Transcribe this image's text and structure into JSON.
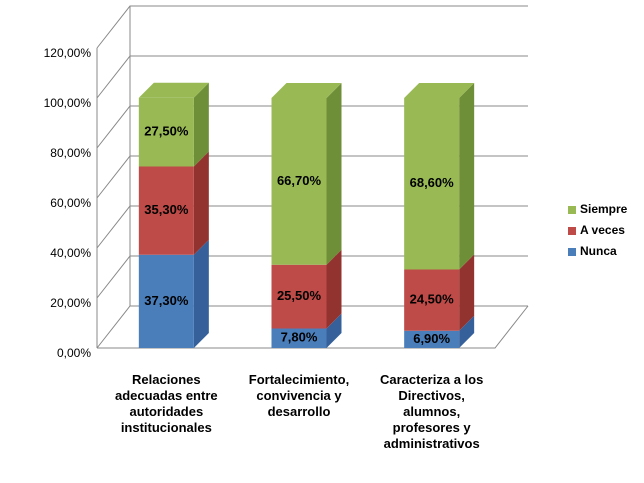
{
  "chart_data": {
    "type": "bar",
    "stacked": true,
    "categories": [
      "Relaciones adecuadas entre autoridades institucionales",
      "Fortalecimiento, convivencia y desarrollo",
      "Caracteriza a los Directivos, alumnos, profesores y administrativos"
    ],
    "series": [
      {
        "name": "Nunca",
        "color": "#4a7ebb",
        "side_color": "#36609a",
        "values": [
          37.3,
          7.8,
          6.9
        ],
        "value_labels": [
          "37,30%",
          "7,80%",
          "6,90%"
        ]
      },
      {
        "name": "A veces",
        "color": "#be4b48",
        "side_color": "#93332f",
        "values": [
          35.3,
          25.5,
          24.5
        ],
        "value_labels": [
          "35,30%",
          "25,50%",
          "24,50%"
        ]
      },
      {
        "name": "Siempre",
        "color": "#98b954",
        "side_color": "#6f8e38",
        "values": [
          27.5,
          66.7,
          68.6
        ],
        "value_labels": [
          "27,50%",
          "66,70%",
          "68,60%"
        ]
      }
    ],
    "ylim": [
      0,
      120
    ],
    "yticks": [
      {
        "value": 0,
        "label": "0,00%"
      },
      {
        "value": 20,
        "label": "20,00%"
      },
      {
        "value": 40,
        "label": "40,00%"
      },
      {
        "value": 60,
        "label": "60,00%"
      },
      {
        "value": 80,
        "label": "80,00%"
      },
      {
        "value": 100,
        "label": "100,00%"
      },
      {
        "value": 120,
        "label": "120,00%"
      }
    ],
    "grid": true,
    "legend": "right"
  }
}
